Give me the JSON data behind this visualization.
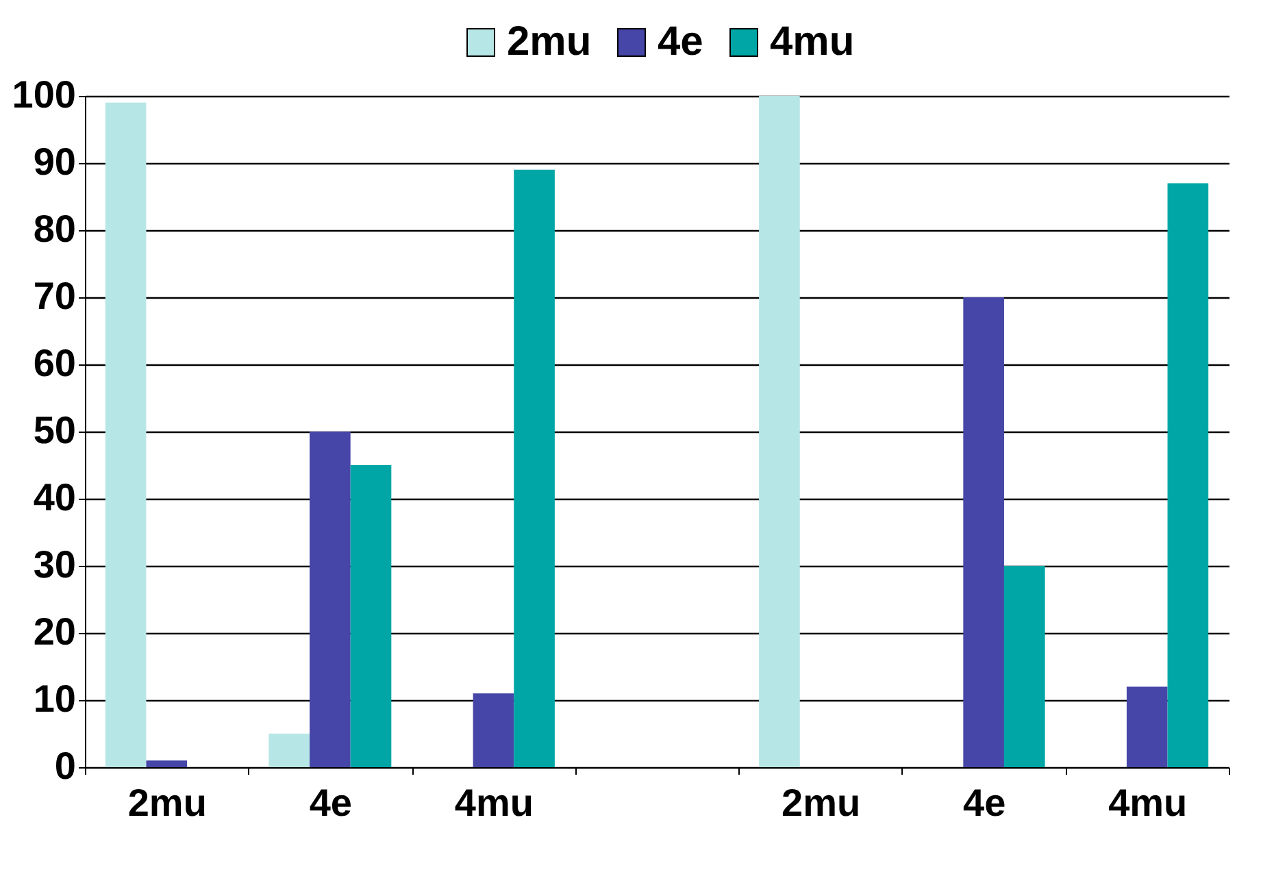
{
  "chart_data": {
    "type": "bar",
    "categories": [
      "2mu",
      "4e",
      "4mu",
      null,
      "2mu",
      "4e",
      "4mu"
    ],
    "series": [
      {
        "name": "2mu",
        "color": "#b7e6e6",
        "values": [
          99,
          5,
          0,
          null,
          100,
          0,
          0
        ]
      },
      {
        "name": "4e",
        "color": "#4646a8",
        "values": [
          1,
          50,
          11,
          null,
          0,
          70,
          12
        ]
      },
      {
        "name": "4mu",
        "color": "#00a6a6",
        "values": [
          0,
          45,
          89,
          null,
          0,
          30,
          87
        ]
      }
    ],
    "ylim": [
      0,
      100
    ],
    "yticks": [
      0,
      10,
      20,
      30,
      40,
      50,
      60,
      70,
      80,
      90,
      100
    ],
    "grid": "y",
    "legend": "top"
  }
}
